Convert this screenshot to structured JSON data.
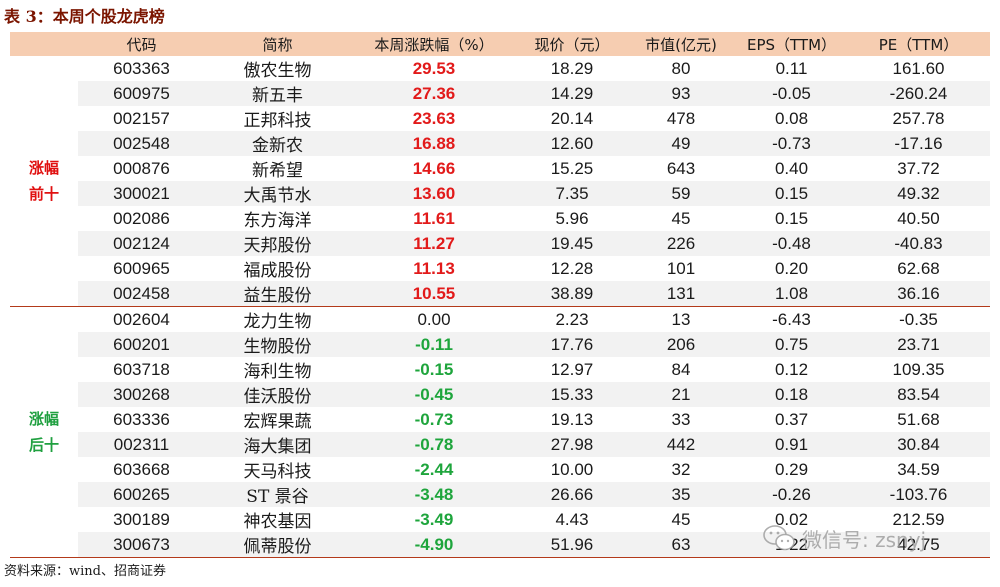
{
  "title": "表 3：本周个股龙虎榜",
  "headers": {
    "code": "代码",
    "name": "简称",
    "change": "本周涨跌幅（%）",
    "price": "现价（元）",
    "mktcap": "市值(亿元)",
    "eps": "EPS（TTM）",
    "pe": "PE（TTM）"
  },
  "groups": {
    "top": "涨幅前十",
    "bottom": "涨幅后十"
  },
  "top_rows": [
    {
      "code": "603363",
      "name": "傲农生物",
      "change": "29.53",
      "price": "18.29",
      "mktcap": "80",
      "eps": "0.11",
      "pe": "161.60"
    },
    {
      "code": "600975",
      "name": "新五丰",
      "change": "27.36",
      "price": "14.29",
      "mktcap": "93",
      "eps": "-0.05",
      "pe": "-260.24"
    },
    {
      "code": "002157",
      "name": "正邦科技",
      "change": "23.63",
      "price": "20.14",
      "mktcap": "478",
      "eps": "0.08",
      "pe": "257.78"
    },
    {
      "code": "002548",
      "name": "金新农",
      "change": "16.88",
      "price": "12.60",
      "mktcap": "49",
      "eps": "-0.73",
      "pe": "-17.16"
    },
    {
      "code": "000876",
      "name": "新希望",
      "change": "14.66",
      "price": "15.25",
      "mktcap": "643",
      "eps": "0.40",
      "pe": "37.72"
    },
    {
      "code": "300021",
      "name": "大禹节水",
      "change": "13.60",
      "price": "7.35",
      "mktcap": "59",
      "eps": "0.15",
      "pe": "49.32"
    },
    {
      "code": "002086",
      "name": "东方海洋",
      "change": "11.61",
      "price": "5.96",
      "mktcap": "45",
      "eps": "0.15",
      "pe": "40.50"
    },
    {
      "code": "002124",
      "name": "天邦股份",
      "change": "11.27",
      "price": "19.45",
      "mktcap": "226",
      "eps": "-0.48",
      "pe": "-40.83"
    },
    {
      "code": "600965",
      "name": "福成股份",
      "change": "11.13",
      "price": "12.28",
      "mktcap": "101",
      "eps": "0.20",
      "pe": "62.68"
    },
    {
      "code": "002458",
      "name": "益生股份",
      "change": "10.55",
      "price": "38.89",
      "mktcap": "131",
      "eps": "1.08",
      "pe": "36.16"
    }
  ],
  "bottom_rows": [
    {
      "code": "002604",
      "name": "龙力生物",
      "change": "0.00",
      "price": "2.23",
      "mktcap": "13",
      "eps": "-6.43",
      "pe": "-0.35"
    },
    {
      "code": "600201",
      "name": "生物股份",
      "change": "-0.11",
      "price": "17.76",
      "mktcap": "206",
      "eps": "0.75",
      "pe": "23.71"
    },
    {
      "code": "603718",
      "name": "海利生物",
      "change": "-0.15",
      "price": "12.97",
      "mktcap": "84",
      "eps": "0.12",
      "pe": "109.35"
    },
    {
      "code": "300268",
      "name": "佳沃股份",
      "change": "-0.45",
      "price": "15.33",
      "mktcap": "21",
      "eps": "0.18",
      "pe": "83.54"
    },
    {
      "code": "603336",
      "name": "宏辉果蔬",
      "change": "-0.73",
      "price": "19.13",
      "mktcap": "33",
      "eps": "0.37",
      "pe": "51.68"
    },
    {
      "code": "002311",
      "name": "海大集团",
      "change": "-0.78",
      "price": "27.98",
      "mktcap": "442",
      "eps": "0.91",
      "pe": "30.84"
    },
    {
      "code": "603668",
      "name": "天马科技",
      "change": "-2.44",
      "price": "10.00",
      "mktcap": "32",
      "eps": "0.29",
      "pe": "34.59"
    },
    {
      "code": "600265",
      "name": "ST 景谷",
      "change": "-3.48",
      "price": "26.66",
      "mktcap": "35",
      "eps": "-0.26",
      "pe": "-103.76"
    },
    {
      "code": "300189",
      "name": "神农基因",
      "change": "-3.49",
      "price": "4.43",
      "mktcap": "45",
      "eps": "0.02",
      "pe": "212.59"
    },
    {
      "code": "300673",
      "name": "佩蒂股份",
      "change": "-4.90",
      "price": "51.96",
      "mktcap": "63",
      "eps": "1.22",
      "pe": "42.75"
    }
  ],
  "source": "资料来源：wind、招商证券",
  "watermark": "微信号: zsnyj",
  "colors": {
    "header_bg": "#f6cdb1",
    "up": "#e21a1a",
    "down": "#1ea53c",
    "title": "#7b1500",
    "rule": "#b33a1a"
  },
  "icons": {
    "watermark": "wechat-icon"
  }
}
